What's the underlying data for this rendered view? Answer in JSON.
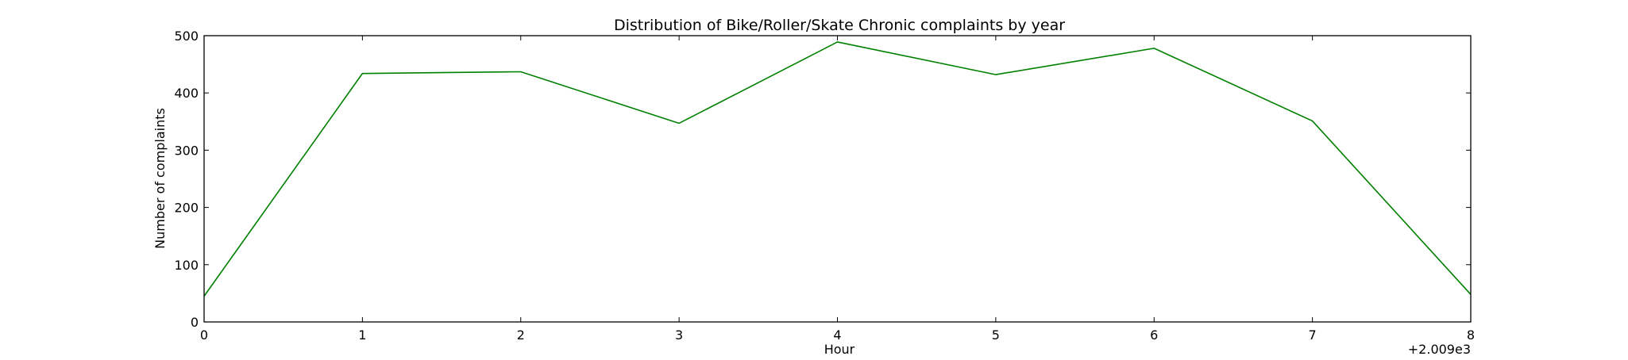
{
  "chart_data": {
    "type": "line",
    "title": "Distribution of  Bike/Roller/Skate Chronic complaints by year",
    "xlabel": "Hour",
    "ylabel": "Number of complaints",
    "x_offset_label": "+2.009e3",
    "x": [
      0,
      1,
      2,
      3,
      4,
      5,
      6,
      7,
      8
    ],
    "xlim": [
      0,
      8
    ],
    "ylim": [
      0,
      500
    ],
    "x_ticks": [
      "0",
      "1",
      "2",
      "3",
      "4",
      "5",
      "6",
      "7",
      "8"
    ],
    "y_ticks": [
      "0",
      "100",
      "200",
      "300",
      "400",
      "500"
    ],
    "grid": false,
    "series": [
      {
        "values": [
          45,
          434,
          437,
          347,
          489,
          432,
          478,
          351,
          48
        ],
        "color": "#008000"
      }
    ]
  }
}
